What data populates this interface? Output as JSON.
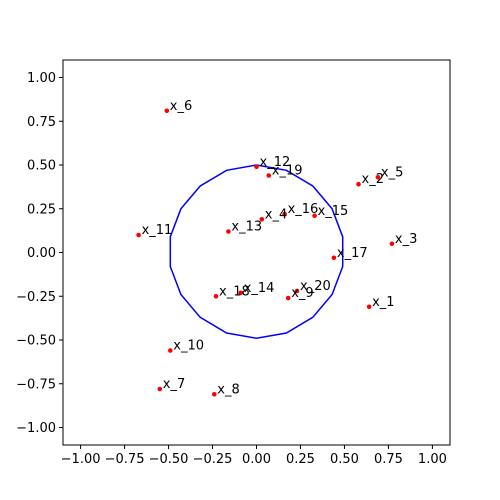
{
  "chart_data": {
    "type": "scatter",
    "xlim": [
      -1.1,
      1.1
    ],
    "ylim": [
      -1.1,
      1.1
    ],
    "grid": false,
    "x_ticks": [
      -1.0,
      -0.75,
      -0.5,
      -0.25,
      0.0,
      0.25,
      0.5,
      0.75,
      1.0
    ],
    "y_ticks": [
      -1.0,
      -0.75,
      -0.5,
      -0.25,
      0.0,
      0.25,
      0.5,
      0.75,
      1.0
    ],
    "x_tick_labels": [
      "−1.00",
      "−0.75",
      "−0.50",
      "−0.25",
      "0.00",
      "0.25",
      "0.50",
      "0.75",
      "1.00"
    ],
    "y_tick_labels": [
      "−1.00",
      "−0.75",
      "−0.50",
      "−0.25",
      "0.00",
      "0.25",
      "0.50",
      "0.75",
      "1.00"
    ],
    "point_color": "#ff0000",
    "boundary_color": "#0000ff",
    "points": [
      {
        "label": "x_1",
        "x": 0.64,
        "y": -0.31
      },
      {
        "label": "x_2",
        "x": 0.58,
        "y": 0.39
      },
      {
        "label": "x_3",
        "x": 0.77,
        "y": 0.05
      },
      {
        "label": "x_4",
        "x": 0.03,
        "y": 0.19
      },
      {
        "label": "x_5",
        "x": 0.69,
        "y": 0.43
      },
      {
        "label": "x_6",
        "x": -0.51,
        "y": 0.81
      },
      {
        "label": "x_7",
        "x": -0.55,
        "y": -0.78
      },
      {
        "label": "x_8",
        "x": -0.24,
        "y": -0.81
      },
      {
        "label": "x_9",
        "x": 0.18,
        "y": -0.26
      },
      {
        "label": "x_10",
        "x": -0.49,
        "y": -0.56
      },
      {
        "label": "x_11",
        "x": -0.67,
        "y": 0.1
      },
      {
        "label": "x_12",
        "x": 0.0,
        "y": 0.49
      },
      {
        "label": "x_13",
        "x": -0.16,
        "y": 0.12
      },
      {
        "label": "x_14",
        "x": -0.09,
        "y": -0.23
      },
      {
        "label": "x_15",
        "x": 0.33,
        "y": 0.21
      },
      {
        "label": "x_16",
        "x": 0.16,
        "y": 0.22
      },
      {
        "label": "x_17",
        "x": 0.44,
        "y": -0.03
      },
      {
        "label": "x_18",
        "x": -0.23,
        "y": -0.25
      },
      {
        "label": "x_19",
        "x": 0.07,
        "y": 0.44
      },
      {
        "label": "x_20",
        "x": 0.23,
        "y": -0.22
      }
    ],
    "boundary": [
      [
        0.0,
        0.5
      ],
      [
        0.17,
        0.47
      ],
      [
        0.32,
        0.38
      ],
      [
        0.43,
        0.25
      ],
      [
        0.49,
        0.09
      ],
      [
        0.49,
        -0.08
      ],
      [
        0.43,
        -0.24
      ],
      [
        0.32,
        -0.37
      ],
      [
        0.17,
        -0.46
      ],
      [
        0.0,
        -0.49
      ],
      [
        -0.17,
        -0.46
      ],
      [
        -0.32,
        -0.37
      ],
      [
        -0.43,
        -0.24
      ],
      [
        -0.49,
        -0.08
      ],
      [
        -0.49,
        0.09
      ],
      [
        -0.43,
        0.25
      ],
      [
        -0.32,
        0.38
      ],
      [
        -0.17,
        0.47
      ],
      [
        0.0,
        0.5
      ]
    ]
  }
}
